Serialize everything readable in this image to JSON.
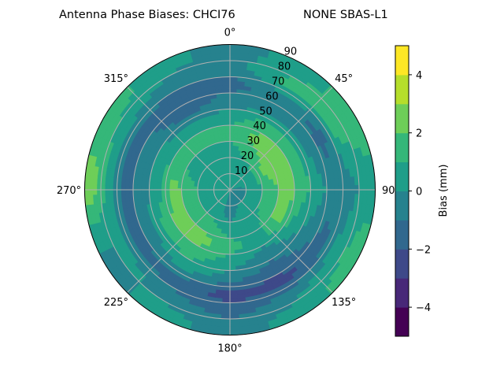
{
  "chart_data": {
    "type": "heatmap",
    "subtype": "polar-contourf",
    "title": "Antenna Phase Biases: CHCI76",
    "title_right": "NONE SBAS-L1",
    "colorbar_label": "Bias (mm)",
    "colormap": "viridis",
    "levels": [
      -5,
      -4,
      -3,
      -2,
      -1,
      0,
      1,
      2,
      3,
      4,
      5
    ],
    "level_colors": [
      "#440154",
      "#482878",
      "#3e4989",
      "#31688e",
      "#26828e",
      "#1f9e89",
      "#35b779",
      "#6ece58",
      "#b5de2b",
      "#fde725"
    ],
    "colorbar_ticks": [
      {
        "value": -4,
        "label": "−4"
      },
      {
        "value": -2,
        "label": "−2"
      },
      {
        "value": 0,
        "label": "0"
      },
      {
        "value": 2,
        "label": "2"
      },
      {
        "value": 4,
        "label": "4"
      }
    ],
    "theta_direction": "clockwise",
    "theta_zero": "north",
    "theta_ticks": [
      {
        "value": 0,
        "label": "0°"
      },
      {
        "value": 45,
        "label": "45°"
      },
      {
        "value": 90,
        "label": "90°"
      },
      {
        "value": 135,
        "label": "135°"
      },
      {
        "value": 180,
        "label": "180°"
      },
      {
        "value": 225,
        "label": "225°"
      },
      {
        "value": 270,
        "label": "270°"
      },
      {
        "value": 315,
        "label": "315°"
      }
    ],
    "r_range": [
      0,
      90
    ],
    "r_ticks": [
      {
        "value": 10,
        "label": "10"
      },
      {
        "value": 20,
        "label": "20"
      },
      {
        "value": 30,
        "label": "30"
      },
      {
        "value": 40,
        "label": "40"
      },
      {
        "value": 50,
        "label": "50"
      },
      {
        "value": 60,
        "label": "60"
      },
      {
        "value": 70,
        "label": "70"
      },
      {
        "value": 80,
        "label": "80"
      },
      {
        "value": 90,
        "label": "90"
      }
    ],
    "grid": true,
    "azimuths": [
      0,
      30,
      60,
      90,
      120,
      150,
      180,
      210,
      240,
      270,
      300,
      330
    ],
    "radii": [
      5,
      15,
      25,
      35,
      45,
      55,
      65,
      75,
      85
    ],
    "values": [
      [
        0.5,
        0.5,
        0.5,
        1.5,
        0.5,
        -0.5,
        -1.5,
        -0.5,
        -0.5
      ],
      [
        0.5,
        0.5,
        1.5,
        2.5,
        1.5,
        -0.5,
        -0.5,
        1.5,
        0.5
      ],
      [
        0.5,
        0.5,
        2.5,
        2.5,
        1.5,
        -0.5,
        -1.5,
        1.5,
        1.5
      ],
      [
        -0.5,
        0.5,
        1.5,
        2.5,
        1.5,
        0.5,
        -0.5,
        -0.5,
        0.5
      ],
      [
        -0.5,
        0.5,
        1.5,
        2.5,
        0.5,
        -0.5,
        -1.5,
        0.5,
        1.5
      ],
      [
        -0.5,
        0.5,
        0.5,
        0.5,
        -0.5,
        -1.5,
        -2.5,
        -0.5,
        0.5
      ],
      [
        -0.5,
        -0.5,
        0.5,
        1.5,
        0.5,
        -0.5,
        -2.5,
        -1.5,
        -0.5
      ],
      [
        0.5,
        0.5,
        1.5,
        2.5,
        1.5,
        0.5,
        -1.5,
        -0.5,
        0.5
      ],
      [
        0.5,
        0.5,
        1.5,
        2.5,
        1.5,
        -0.5,
        -1.5,
        0.5,
        -0.5
      ],
      [
        0.5,
        0.5,
        1.5,
        2.5,
        0.5,
        -0.5,
        -1.5,
        0.5,
        2.5
      ],
      [
        0.5,
        0.5,
        0.5,
        1.5,
        0.5,
        -0.5,
        -1.5,
        0.5,
        1.5
      ],
      [
        0.5,
        0.5,
        0.5,
        1.5,
        0.5,
        -1.5,
        -1.5,
        -0.5,
        0.5
      ]
    ]
  }
}
